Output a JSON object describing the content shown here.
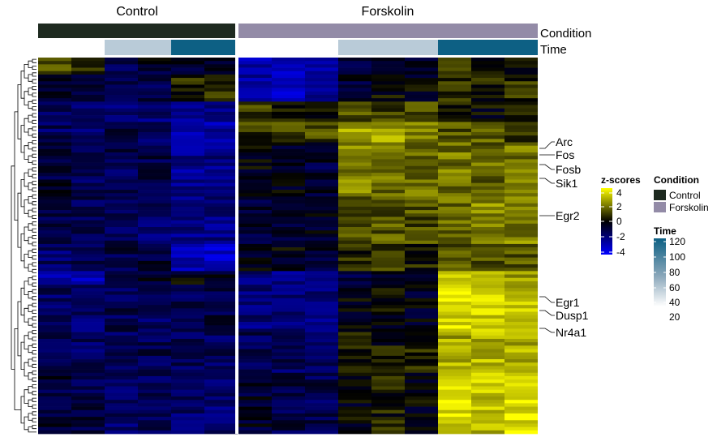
{
  "chart_data": {
    "type": "heatmap",
    "title": "",
    "column_groups": [
      {
        "label": "Control",
        "n": 6
      },
      {
        "label": "Forskolin",
        "n": 9
      }
    ],
    "annotation_rows": [
      {
        "name": "Condition",
        "values": [
          "Control",
          "Control",
          "Control",
          "Control",
          "Control",
          "Control",
          "Forskolin",
          "Forskolin",
          "Forskolin",
          "Forskolin",
          "Forskolin",
          "Forskolin",
          "Forskolin",
          "Forskolin",
          "Forskolin"
        ]
      },
      {
        "name": "Time",
        "values": [
          20,
          20,
          40,
          40,
          120,
          120,
          20,
          20,
          20,
          40,
          40,
          40,
          120,
          120,
          120
        ]
      }
    ],
    "highlighted_genes": [
      "Arc",
      "Fos",
      "Fosb",
      "Sik1",
      "Egr2",
      "Egr1",
      "Dusp1",
      "Nr4a1"
    ],
    "row_count": 111,
    "row_blocks": [
      {
        "rows": 5,
        "pattern": [
          1.2,
          0.8,
          -1.2,
          -0.6,
          -0.6,
          -0.4,
          -2.8,
          -3.0,
          -2.6,
          -1.0,
          -0.6,
          -0.8,
          0.6,
          0.2,
          0.4
        ]
      },
      {
        "rows": 8,
        "pattern": [
          -0.6,
          -1.0,
          -1.2,
          -1.0,
          0.4,
          0.6,
          -2.6,
          -2.8,
          -2.4,
          -0.6,
          0.0,
          -0.2,
          0.8,
          0.4,
          0.6
        ]
      },
      {
        "rows": 6,
        "pattern": [
          -1.6,
          -1.8,
          -1.6,
          -1.8,
          -2.4,
          -2.2,
          0.8,
          0.6,
          0.4,
          1.2,
          1.0,
          1.0,
          0.2,
          0.0,
          0.4
        ]
      },
      {
        "rows": 6,
        "pattern": [
          -1.4,
          -1.6,
          -1.2,
          -1.4,
          -2.4,
          -2.6,
          0.8,
          1.2,
          1.0,
          2.4,
          2.6,
          2.2,
          1.2,
          1.4,
          1.0
        ]
      },
      {
        "rows": 16,
        "pattern": [
          -0.8,
          -1.4,
          -1.2,
          -1.0,
          -2.2,
          -2.0,
          -0.2,
          -0.4,
          -0.8,
          2.0,
          1.8,
          1.6,
          1.8,
          1.6,
          1.8
        ]
      },
      {
        "rows": 14,
        "pattern": [
          -1.2,
          -1.2,
          -1.4,
          -1.6,
          -2.0,
          -2.0,
          -0.8,
          -0.6,
          -0.4,
          1.4,
          1.4,
          1.2,
          1.6,
          2.2,
          2.0
        ]
      },
      {
        "rows": 8,
        "pattern": [
          -1.6,
          -1.4,
          -1.0,
          -0.8,
          -2.8,
          -3.2,
          -0.4,
          -0.2,
          -0.6,
          0.6,
          0.8,
          0.4,
          1.4,
          1.0,
          1.2
        ]
      },
      {
        "rows": 4,
        "pattern": [
          -2.4,
          -2.6,
          -1.0,
          -0.6,
          -0.2,
          -0.6,
          -2.0,
          -2.2,
          -2.4,
          -0.8,
          -0.4,
          -0.6,
          3.0,
          2.8,
          2.6
        ]
      },
      {
        "rows": 14,
        "pattern": [
          -1.4,
          -1.6,
          -1.2,
          -1.4,
          -1.2,
          -1.0,
          -1.8,
          -2.0,
          -1.8,
          -0.2,
          0.0,
          -0.4,
          3.4,
          3.2,
          3.0
        ]
      },
      {
        "rows": 12,
        "pattern": [
          -1.2,
          -1.4,
          -1.6,
          -1.2,
          -1.2,
          -1.4,
          -1.2,
          -1.4,
          -1.2,
          0.4,
          0.2,
          0.6,
          2.6,
          2.8,
          2.6
        ]
      },
      {
        "rows": 18,
        "pattern": [
          -0.8,
          -1.0,
          -1.6,
          -1.2,
          -1.6,
          -1.8,
          -0.6,
          -1.0,
          -1.2,
          -0.2,
          0.4,
          -0.2,
          3.4,
          3.0,
          3.6
        ]
      }
    ],
    "color_scale": {
      "min": -4,
      "max": 4,
      "low": "#0000ff",
      "mid": "#000000",
      "high": "#ffff00"
    },
    "annotation_colors": {
      "Control": "#1e2a20",
      "Forskolin": "#938ba7",
      "time_low": "#ffffff",
      "time_mid": "#b9cbd8",
      "time_high": "#0d6084"
    }
  },
  "labels": {
    "group_control": "Control",
    "group_forskolin": "Forskolin",
    "row_condition": "Condition",
    "row_time": "Time"
  },
  "legend": {
    "zscore_title": "z-scores",
    "zscore_ticks": [
      "4",
      "2",
      "0",
      "-2",
      "-4"
    ],
    "condition_title": "Condition",
    "condition_items": [
      "Control",
      "Forskolin"
    ],
    "time_title": "Time",
    "time_ticks": [
      "120",
      "100",
      "80",
      "60",
      "40",
      "20"
    ]
  }
}
